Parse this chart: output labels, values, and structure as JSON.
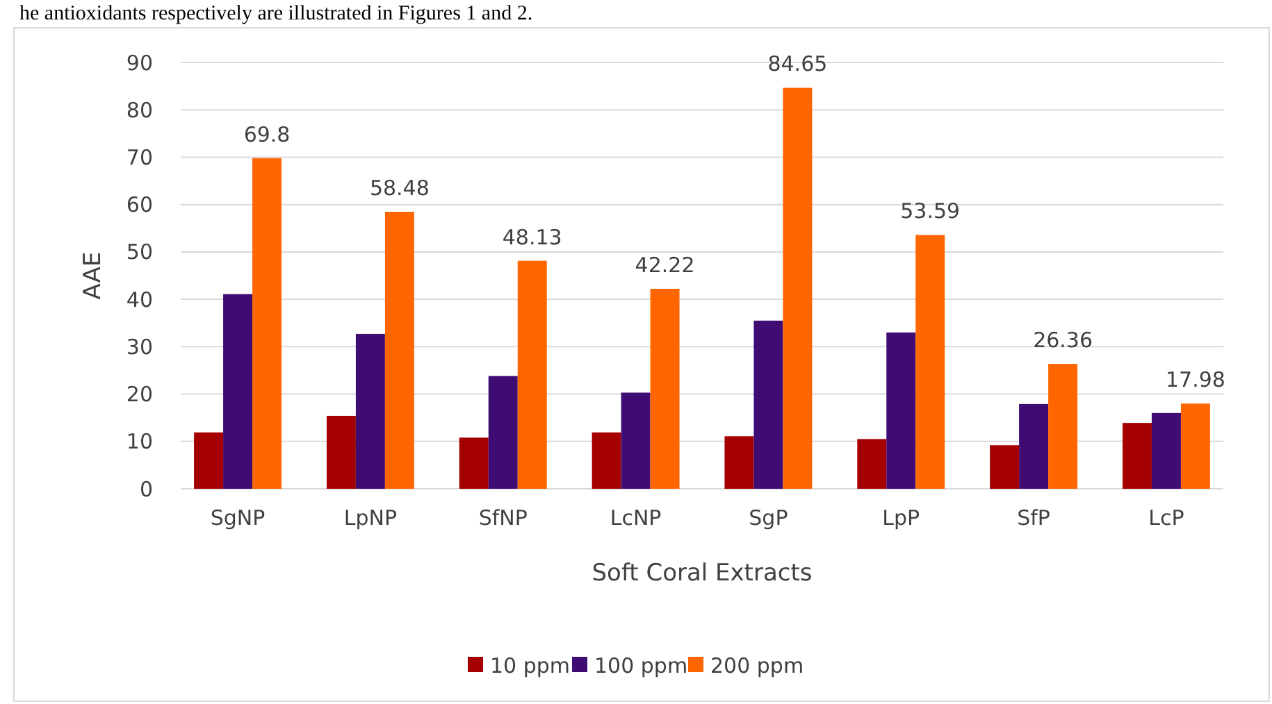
{
  "chart_data": {
    "type": "bar",
    "xlabel": "Soft Coral Extracts",
    "ylabel": "AAE",
    "annotations": [
      "he antioxidants respectively are illustrated in Figures 1 and 2."
    ],
    "categories": [
      "SgNP",
      "LpNP",
      "SfNP",
      "LcNP",
      "SgP",
      "LpP",
      "SfP",
      "LcP"
    ],
    "series": [
      {
        "name": "10 ppm",
        "color": "#a50000",
        "values": [
          11.9,
          15.4,
          10.8,
          11.9,
          11.1,
          10.5,
          9.2,
          13.9
        ]
      },
      {
        "name": "100 ppm",
        "color": "#3f0c73",
        "values": [
          41.1,
          32.7,
          23.8,
          20.3,
          35.5,
          33.0,
          17.9,
          16.0
        ]
      },
      {
        "name": "200 ppm",
        "color": "#ff6600",
        "values": [
          69.8,
          58.48,
          48.13,
          42.22,
          84.65,
          53.59,
          26.36,
          17.98
        ],
        "value_labels": [
          "69.8",
          "58.48",
          "48.13",
          "42.22",
          "84.65",
          "53.59",
          "26.36",
          "17.98"
        ]
      }
    ],
    "ylim": [
      0,
      90
    ],
    "yticks": [
      0,
      10,
      20,
      30,
      40,
      50,
      60,
      70,
      80,
      90
    ],
    "grid": "y",
    "legend": "bottom"
  }
}
